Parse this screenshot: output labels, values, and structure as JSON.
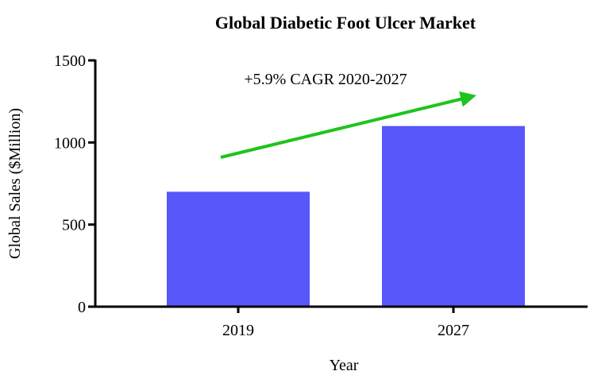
{
  "chart_data": {
    "type": "bar",
    "title": "Global Diabetic Foot Ulcer Market",
    "categories": [
      "2019",
      "2027"
    ],
    "values": [
      700,
      1100
    ],
    "color": "#5757fa",
    "xlabel": "Year",
    "ylabel": "Global Sales ($Million)",
    "annotation": "+5.9% CAGR 2020-2027",
    "annotation_color": "#1dc41d",
    "ylim": [
      0,
      1500
    ],
    "yticks": [
      0,
      500,
      1000,
      1500
    ],
    "grid": false
  }
}
